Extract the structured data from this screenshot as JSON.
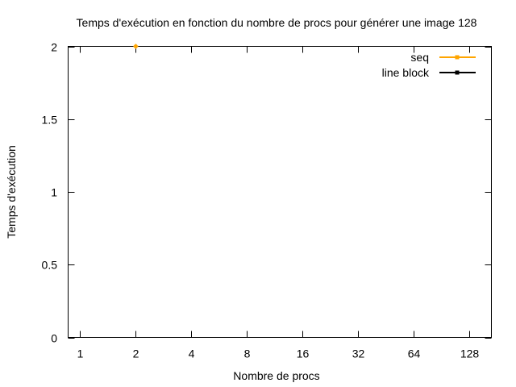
{
  "chart_data": {
    "type": "line",
    "title": "Temps d'exécution en fonction du nombre de procs pour générer une image 128",
    "xlabel": "Nombre de procs",
    "ylabel": "Temps d'exécution",
    "x_scale": "log2",
    "xlim": [
      0.86,
      169
    ],
    "ylim": [
      0,
      2
    ],
    "x_ticks": [
      1,
      2,
      4,
      8,
      16,
      32,
      64,
      128
    ],
    "x_tick_labels": [
      "1",
      "2",
      "4",
      "8",
      "16",
      "32",
      "64",
      "128"
    ],
    "y_ticks": [
      0,
      0.5,
      1,
      1.5,
      2
    ],
    "y_tick_labels": [
      "0",
      "0.5",
      "1",
      "1.5",
      "2"
    ],
    "grid": false,
    "legend_position": "top-right",
    "series": [
      {
        "name": "seq",
        "color": "#ffa500",
        "points": [
          {
            "x": 2,
            "y": 2
          }
        ]
      },
      {
        "name": "line block",
        "color": "#000000",
        "points": []
      }
    ]
  }
}
